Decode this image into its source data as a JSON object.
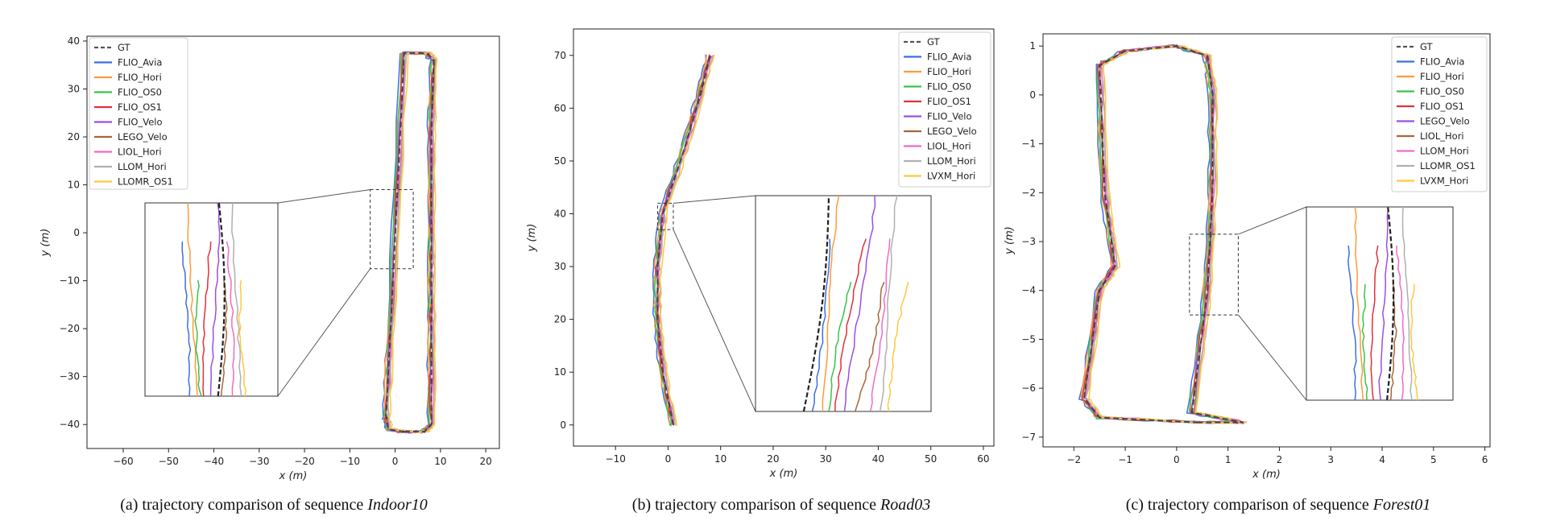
{
  "colors": {
    "GT": "#555555",
    "FLIO_Avia": "#3b6fe0",
    "FLIO_Hori": "#ff9a3c",
    "FLIO_OS0": "#3cc24a",
    "FLIO_OS1": "#e0303c",
    "FLIO_Velo": "#9b4fe0",
    "LEGO_Velo": "#a8663a",
    "LIOL_Hori": "#f06ac8",
    "LLOM_Hori": "#b0b0b0",
    "LLOMR_OS1": "#ffc83c",
    "LVXM_Hori": "#ffc83c",
    "LEGO_Velo_c": "#9b4fe0",
    "LIOL_Hori_c": "#a8663a",
    "LLOM_Hori_c": "#f06ac8",
    "LLOMR_OS1_c": "#b0b0b0"
  },
  "chart_data": [
    {
      "type": "line",
      "caption_prefix": "(a) trajectory comparison of sequence ",
      "caption_italic": "Indoor10",
      "xlabel": "x (m)",
      "ylabel": "y (m)",
      "xlim": [
        -68,
        23
      ],
      "ylim": [
        -45,
        41
      ],
      "xticks": [
        -60,
        -50,
        -40,
        -30,
        -20,
        -10,
        0,
        10,
        20
      ],
      "yticks": [
        -40,
        -30,
        -20,
        -10,
        0,
        10,
        20,
        30,
        40
      ],
      "legend": [
        "GT",
        "FLIO_Avia",
        "FLIO_Hori",
        "FLIO_OS0",
        "FLIO_OS1",
        "FLIO_Velo",
        "LEGO_Velo",
        "LIOL_Hori",
        "LLOM_Hori",
        "LLOMR_OS1"
      ],
      "legend_colors": [
        "GT",
        "FLIO_Avia",
        "FLIO_Hori",
        "FLIO_OS0",
        "FLIO_OS1",
        "FLIO_Velo",
        "LEGO_Velo",
        "LIOL_Hori",
        "LLOM_Hori",
        "LLOMR_OS1"
      ],
      "legend_loc": "top-left",
      "gt_path": [
        [
          2,
          -41.5
        ],
        [
          6.5,
          -41.5
        ],
        [
          8,
          -40
        ],
        [
          8,
          -20
        ],
        [
          8,
          0
        ],
        [
          8,
          20
        ],
        [
          8.5,
          36
        ],
        [
          7,
          37.5
        ],
        [
          2,
          37.5
        ],
        [
          -1,
          -20
        ],
        [
          -2,
          -38
        ],
        [
          -1.5,
          -41
        ],
        [
          2,
          -41.5
        ]
      ],
      "zoom_rect": [
        -5.5,
        -7.5,
        4,
        9
      ]
    },
    {
      "type": "line",
      "caption_prefix": "(b) trajectory comparison of sequence ",
      "caption_italic": "Road03",
      "xlabel": "x (m)",
      "ylabel": "y (m)",
      "xlim": [
        -18,
        62
      ],
      "ylim": [
        -4,
        75
      ],
      "xticks": [
        -10,
        0,
        10,
        20,
        30,
        40,
        50,
        60
      ],
      "yticks": [
        0,
        10,
        20,
        30,
        40,
        50,
        60,
        70
      ],
      "legend": [
        "GT",
        "FLIO_Avia",
        "FLIO_Hori",
        "FLIO_OS0",
        "FLIO_OS1",
        "FLIO_Velo",
        "LEGO_Velo",
        "LIOL_Hori",
        "LLOM_Hori",
        "LVXM_Hori"
      ],
      "legend_colors": [
        "GT",
        "FLIO_Avia",
        "FLIO_Hori",
        "FLIO_OS0",
        "FLIO_OS1",
        "FLIO_Velo",
        "LEGO_Velo",
        "LIOL_Hori",
        "LLOM_Hori",
        "LVXM_Hori"
      ],
      "legend_loc": "top-right",
      "gt_path": [
        [
          1,
          0
        ],
        [
          -1,
          10
        ],
        [
          -2,
          20
        ],
        [
          -2,
          30
        ],
        [
          -1,
          40
        ],
        [
          3,
          52
        ],
        [
          6,
          62
        ],
        [
          8,
          70
        ]
      ],
      "zoom_rect": [
        -2,
        37,
        1,
        42
      ]
    },
    {
      "type": "line",
      "caption_prefix": "(c) trajectory comparison of sequence ",
      "caption_italic": "Forest01",
      "xlabel": "x (m)",
      "ylabel": "y (m)",
      "xlim": [
        -2.6,
        6.1
      ],
      "ylim": [
        -7.2,
        1.25
      ],
      "xticks": [
        -2,
        -1,
        0,
        1,
        2,
        3,
        4,
        5,
        6
      ],
      "yticks": [
        -7,
        -6,
        -5,
        -4,
        -3,
        -2,
        -1,
        0,
        1
      ],
      "legend": [
        "GT",
        "FLIO_Avia",
        "FLIO_Hori",
        "FLIO_OS0",
        "FLIO_OS1",
        "LEGO_Velo",
        "LIOL_Hori",
        "LLOM_Hori",
        "LLOMR_OS1",
        "LVXM_Hori"
      ],
      "legend_colors": [
        "GT",
        "FLIO_Avia",
        "FLIO_Hori",
        "FLIO_OS0",
        "FLIO_OS1",
        "LEGO_Velo_c",
        "LIOL_Hori_c",
        "LLOM_Hori_c",
        "LLOMR_OS1_c",
        "LVXM_Hori"
      ],
      "legend_loc": "top-right",
      "gt_path": [
        [
          0.4,
          -6.7
        ],
        [
          1.3,
          -6.7
        ],
        [
          0.3,
          -6.5
        ],
        [
          0.6,
          -4
        ],
        [
          0.7,
          -2
        ],
        [
          0.7,
          0
        ],
        [
          0.6,
          0.8
        ],
        [
          0,
          1
        ],
        [
          -1,
          0.9
        ],
        [
          -1.5,
          0.6
        ],
        [
          -1.4,
          -2
        ],
        [
          -1.2,
          -3.5
        ],
        [
          -1.5,
          -4
        ],
        [
          -1.8,
          -6.2
        ],
        [
          -1.5,
          -6.6
        ],
        [
          0.4,
          -6.7
        ]
      ],
      "zoom_rect": [
        0.25,
        -4.5,
        1.2,
        -2.85
      ]
    }
  ]
}
